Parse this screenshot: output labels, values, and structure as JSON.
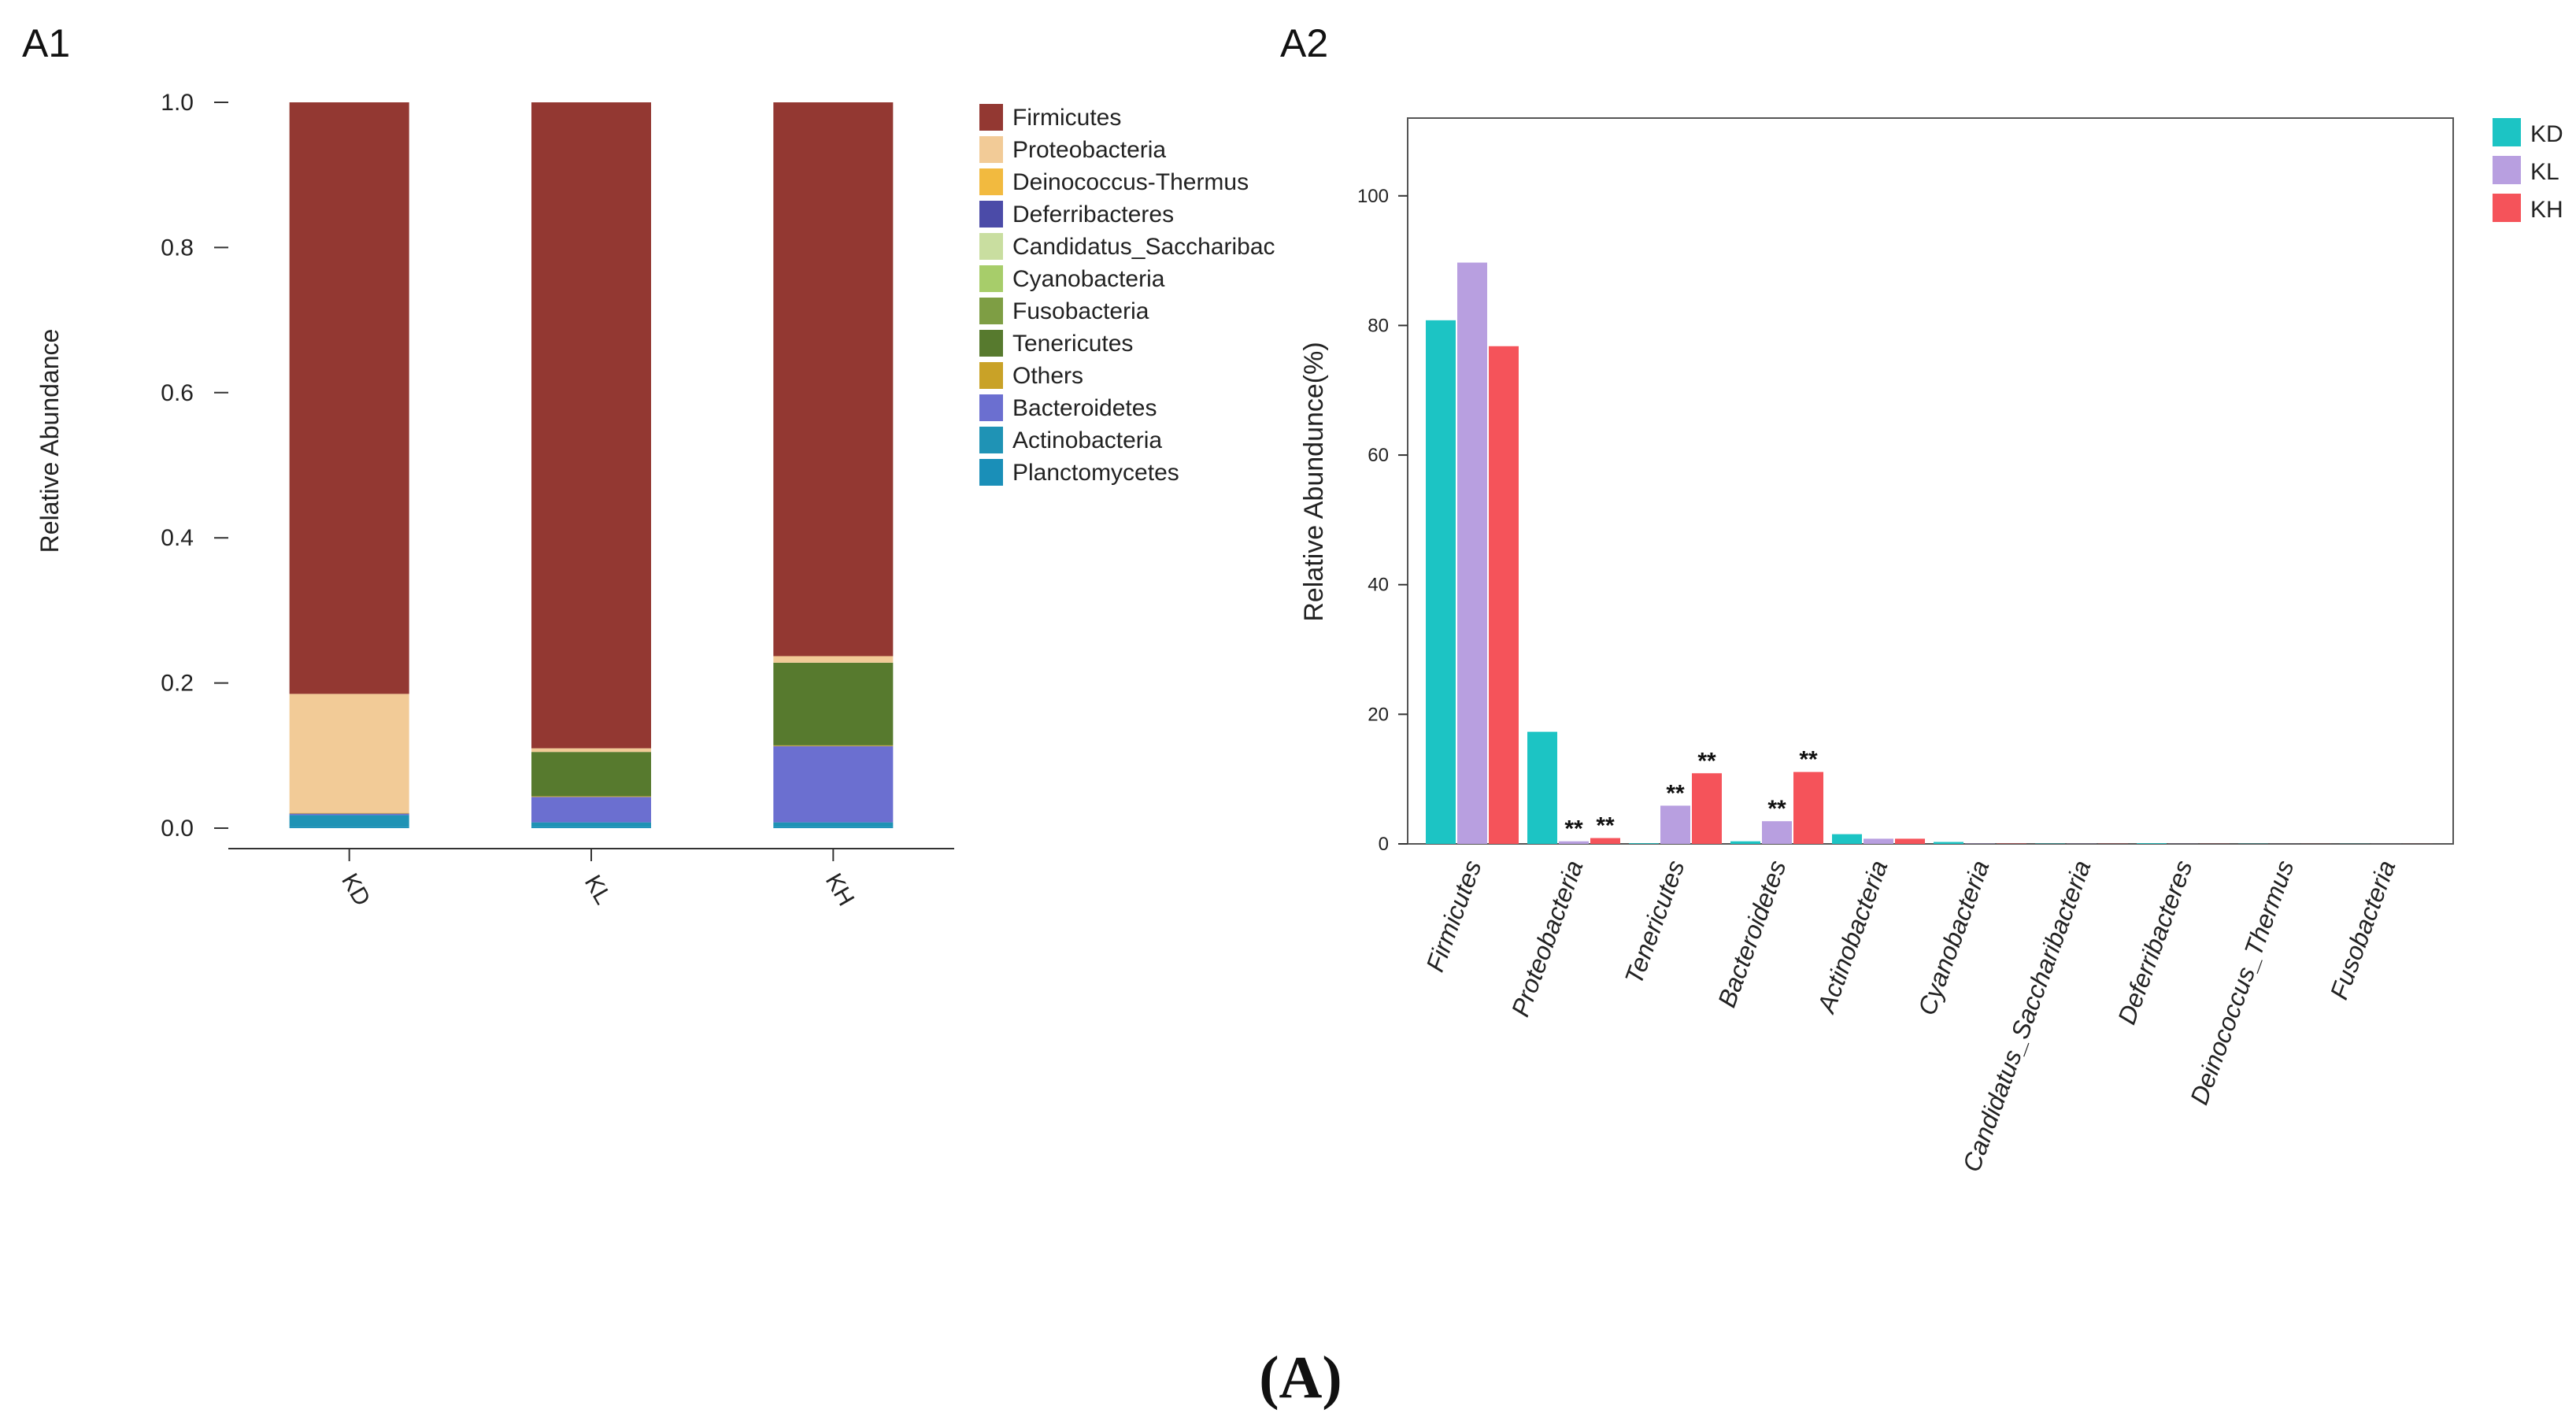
{
  "figure": {
    "panel_a1_label": "A1",
    "panel_a2_label": "A2",
    "caption": "(A)"
  },
  "colors": {
    "axis": "#333333",
    "frame": "#555555",
    "text": "#111111"
  },
  "chart_data": [
    {
      "id": "A1",
      "type": "bar",
      "stacked": true,
      "title": "",
      "xlabel": "",
      "ylabel": "Relative Abundance",
      "ylim": [
        0,
        1.0
      ],
      "yticks": [
        "0.0",
        "0.2",
        "0.4",
        "0.6",
        "0.8",
        "1.0"
      ],
      "categories": [
        "KD",
        "KL",
        "KH"
      ],
      "legend_position": "right",
      "series": [
        {
          "name": "Planctomycetes",
          "color": "#1a8fb8",
          "values": [
            0.002,
            0.002,
            0.002
          ]
        },
        {
          "name": "Actinobacteria",
          "color": "#1f93b5",
          "values": [
            0.016,
            0.006,
            0.006
          ]
        },
        {
          "name": "Bacteroidetes",
          "color": "#6b6fd0",
          "values": [
            0.002,
            0.035,
            0.105
          ]
        },
        {
          "name": "Others",
          "color": "#c9a227",
          "values": [
            0.001,
            0.001,
            0.001
          ]
        },
        {
          "name": "Tenericutes",
          "color": "#577a2e",
          "values": [
            0.0,
            0.061,
            0.114
          ]
        },
        {
          "name": "Fusobacteria",
          "color": "#7e9e44",
          "values": [
            0.0,
            0.0,
            0.0
          ]
        },
        {
          "name": "Cyanobacteria",
          "color": "#a7cd6a",
          "values": [
            0.0,
            0.0,
            0.0
          ]
        },
        {
          "name": "Candidatus_Saccharibac",
          "color": "#c9dea0",
          "values": [
            0.0,
            0.0,
            0.0
          ]
        },
        {
          "name": "Deferribacteres",
          "color": "#4b4ba8",
          "values": [
            0.0,
            0.0,
            0.0
          ]
        },
        {
          "name": "Deinococcus-Thermus",
          "color": "#f2ba3f",
          "values": [
            0.0,
            0.0,
            0.0
          ]
        },
        {
          "name": "Proteobacteria",
          "color": "#f2cb97",
          "values": [
            0.164,
            0.005,
            0.009
          ]
        },
        {
          "name": "Firmicutes",
          "color": "#933832",
          "values": [
            0.815,
            0.89,
            0.763
          ]
        }
      ],
      "legend": [
        {
          "name": "Firmicutes",
          "color": "#933832"
        },
        {
          "name": "Proteobacteria",
          "color": "#f2cb97"
        },
        {
          "name": "Deinococcus-Thermus",
          "color": "#f2ba3f"
        },
        {
          "name": "Deferribacteres",
          "color": "#4b4ba8"
        },
        {
          "name": "Candidatus_Saccharibac",
          "color": "#c9dea0"
        },
        {
          "name": "Cyanobacteria",
          "color": "#a7cd6a"
        },
        {
          "name": "Fusobacteria",
          "color": "#7e9e44"
        },
        {
          "name": "Tenericutes",
          "color": "#577a2e"
        },
        {
          "name": "Others",
          "color": "#c9a227"
        },
        {
          "name": "Bacteroidetes",
          "color": "#6b6fd0"
        },
        {
          "name": "Actinobacteria",
          "color": "#1f93b5"
        },
        {
          "name": "Planctomycetes",
          "color": "#1a8fb8"
        }
      ]
    },
    {
      "id": "A2",
      "type": "bar",
      "stacked": false,
      "title": "",
      "xlabel": "",
      "ylabel": "Relative Abundunce(%)",
      "ylim": [
        0,
        112
      ],
      "yticks": [
        "0",
        "20",
        "40",
        "60",
        "80",
        "100"
      ],
      "categories": [
        "Firmicutes",
        "Proteobacteria",
        "Tenericutes",
        "Bacteroidetes",
        "Actinobacteria",
        "Cyanobacteria",
        "Candidatus_Saccharibacteria",
        "Deferribacteres",
        "Deinococcus_Thermus",
        "Fusobacteria"
      ],
      "legend_position": "top-right",
      "grid": false,
      "series": [
        {
          "name": "KD",
          "color": "#1cc4c4",
          "values": [
            80.8,
            17.3,
            0.1,
            0.4,
            1.5,
            0.3,
            0.05,
            0.1,
            0.03,
            0.02
          ]
        },
        {
          "name": "KL",
          "color": "#b89fe0",
          "values": [
            89.7,
            0.4,
            5.9,
            3.5,
            0.8,
            0.05,
            0.03,
            0.02,
            0.01,
            0.01
          ]
        },
        {
          "name": "KH",
          "color": "#f5535a",
          "values": [
            76.8,
            0.9,
            10.9,
            11.1,
            0.8,
            0.05,
            0.03,
            0.02,
            0.01,
            0.01
          ]
        }
      ],
      "annotations": [
        {
          "category": "Proteobacteria",
          "series": "KL",
          "text": "**"
        },
        {
          "category": "Proteobacteria",
          "series": "KH",
          "text": "**"
        },
        {
          "category": "Tenericutes",
          "series": "KL",
          "text": "**"
        },
        {
          "category": "Tenericutes",
          "series": "KH",
          "text": "**"
        },
        {
          "category": "Bacteroidetes",
          "series": "KL",
          "text": "**"
        },
        {
          "category": "Bacteroidetes",
          "series": "KH",
          "text": "**"
        }
      ]
    }
  ]
}
